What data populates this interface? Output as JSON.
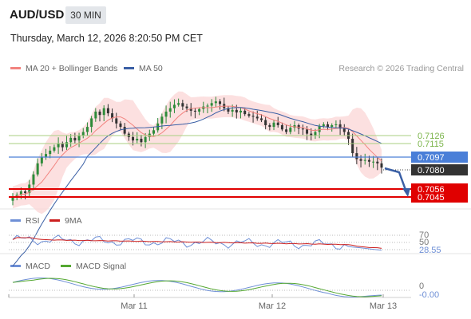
{
  "header": {
    "symbol": "AUD/USD",
    "timeframe": "30 MIN"
  },
  "datetime": "Thursday, March 12, 2026 8:20:50 PM CET",
  "legend": {
    "ma20": "MA 20 + Bollinger Bands",
    "ma50": "MA 50",
    "credit": "Research © 2026 Trading Central",
    "rsi": "RSI",
    "rsi_ma": "9MA",
    "macd": "MACD",
    "macd_signal": "MACD Signal"
  },
  "colors": {
    "ma20": "#f2837f",
    "ma50": "#3a5fa5",
    "band_fill": "#fbd6d6",
    "level_green": "#a9cf82",
    "level_blue": "#4a7fd8",
    "level_red": "#e00000",
    "price_dark": "#333333",
    "rsi": "#6e8fd6",
    "rsi_ma": "#cc1f1f",
    "macd": "#6e8fd6",
    "macd_signal": "#55a832"
  },
  "price_levels": [
    {
      "value": "0.7126",
      "type": "resistance-green"
    },
    {
      "value": "0.7115",
      "type": "resistance-green"
    },
    {
      "value": "0.7097",
      "type": "pivot-blue"
    },
    {
      "value": "0.7080",
      "type": "last-price"
    },
    {
      "value": "0.7056",
      "type": "support-red"
    },
    {
      "value": "0.7045",
      "type": "support-red"
    }
  ],
  "x_axis": [
    "Mar 11",
    "Mar 12",
    "Mar 13"
  ],
  "rsi_panel": {
    "level_70": "70",
    "level_50": "50",
    "value": "28.55"
  },
  "macd_panel": {
    "level_0": "0",
    "value": "-0.00"
  },
  "chart_data": {
    "type": "candlestick",
    "title": "AUD/USD 30 MIN",
    "y_range": [
      0.7036,
      0.7176
    ],
    "x_labels": [
      "Mar 11",
      "Mar 12",
      "Mar 13"
    ],
    "close_prices": [
      0.7045,
      0.7048,
      0.7052,
      0.705,
      0.706,
      0.7072,
      0.7085,
      0.7092,
      0.7096,
      0.71,
      0.7104,
      0.7108,
      0.7104,
      0.711,
      0.7115,
      0.7112,
      0.7118,
      0.7122,
      0.7128,
      0.7138,
      0.7146,
      0.7142,
      0.715,
      0.7144,
      0.7138,
      0.7132,
      0.7128,
      0.712,
      0.7116,
      0.7112,
      0.7114,
      0.711,
      0.7116,
      0.712,
      0.7124,
      0.7132,
      0.714,
      0.7146,
      0.715,
      0.7154,
      0.7156,
      0.7152,
      0.715,
      0.7147,
      0.7146,
      0.7149,
      0.7152,
      0.7153,
      0.7156,
      0.7158,
      0.7155,
      0.715,
      0.7146,
      0.7148,
      0.7145,
      0.7147,
      0.7143,
      0.7141,
      0.714,
      0.7138,
      0.7136,
      0.713,
      0.7128,
      0.7133,
      0.713,
      0.7125,
      0.7122,
      0.7127,
      0.713,
      0.7126,
      0.7125,
      0.712,
      0.7118,
      0.7122,
      0.7129,
      0.7131,
      0.7128,
      0.713,
      0.7131,
      0.7126,
      0.7122,
      0.7114,
      0.7097,
      0.709,
      0.7088,
      0.7089,
      0.7087,
      0.7087,
      0.7085,
      0.708
    ],
    "price_levels": [
      0.7126,
      0.7115,
      0.7097,
      0.708,
      0.7056,
      0.7045
    ],
    "rsi_last": 28.55,
    "macd_last": -0.0
  }
}
